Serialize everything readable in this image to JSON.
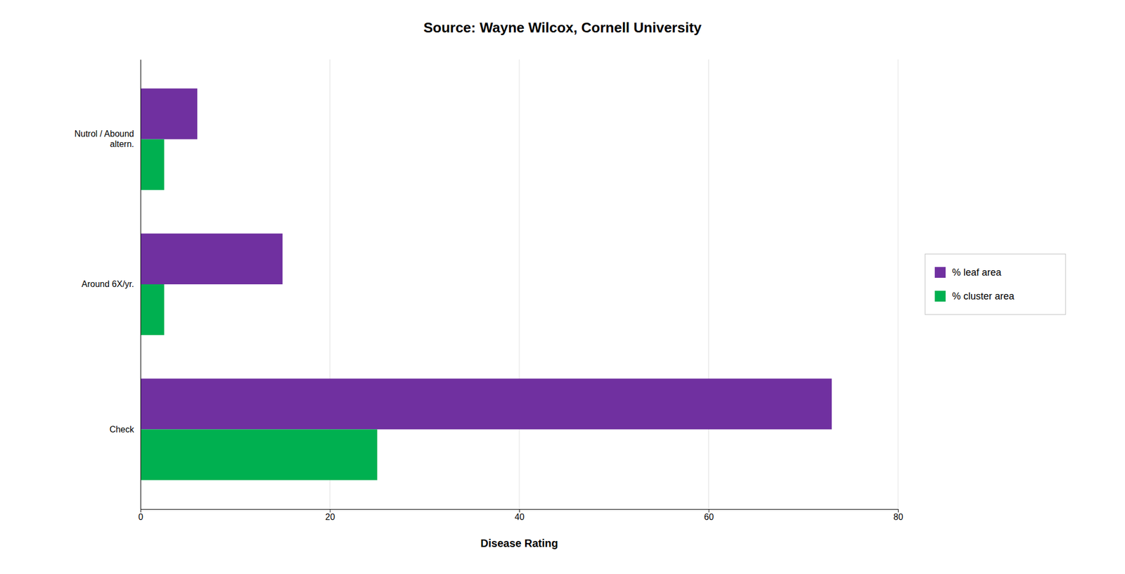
{
  "chart_data": {
    "type": "bar",
    "orientation": "horizontal",
    "title": "Source: Wayne Wilcox, Cornell University",
    "x_label": "Disease Rating",
    "categories": [
      "Check",
      "Around 6X/yr.",
      "Nutrol / Abound\naltern."
    ],
    "series": [
      {
        "name": "% leaf area",
        "color": "#7030A0",
        "values": [
          73,
          15,
          6
        ]
      },
      {
        "name": "% cluster area",
        "color": "#00B050",
        "values": [
          25,
          2.5,
          2.5
        ]
      }
    ],
    "xlim": [
      0,
      80
    ],
    "xticks": [
      0,
      20,
      40,
      60,
      80
    ],
    "grid": true,
    "legend": "right"
  }
}
